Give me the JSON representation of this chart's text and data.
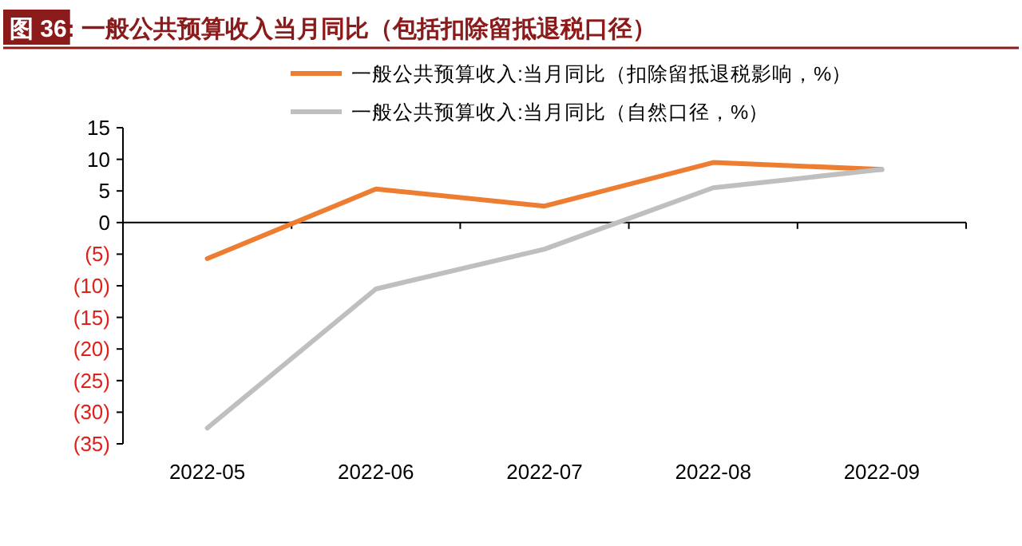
{
  "chart_data": {
    "type": "line",
    "title": "图 36: 一般公共预算收入当月同比（包括扣除留抵退税口径）",
    "categories": [
      "2022-05",
      "2022-06",
      "2022-07",
      "2022-08",
      "2022-09"
    ],
    "series": [
      {
        "name": "一般公共预算收入:当月同比（扣除留抵退税影响，%）",
        "color": "#ed7d31",
        "values": [
          -5.7,
          5.3,
          2.6,
          9.5,
          8.4
        ]
      },
      {
        "name": "一般公共预算收入:当月同比（自然口径，%）",
        "color": "#bfbfbf",
        "values": [
          -32.5,
          -10.5,
          -4.2,
          5.5,
          8.4
        ]
      }
    ],
    "ylim": [
      -35,
      15
    ],
    "yticks": [
      15,
      10,
      5,
      0,
      {
        "value": -5,
        "label": "(5)"
      },
      {
        "value": -10,
        "label": "(10)"
      },
      {
        "value": -15,
        "label": "(15)"
      },
      {
        "value": -20,
        "label": "(20)"
      },
      {
        "value": -25,
        "label": "(25)"
      },
      {
        "value": -30,
        "label": "(30)"
      },
      {
        "value": -35,
        "label": "(35)"
      }
    ],
    "legend": "top",
    "marker": "none",
    "line_style": "solid"
  }
}
